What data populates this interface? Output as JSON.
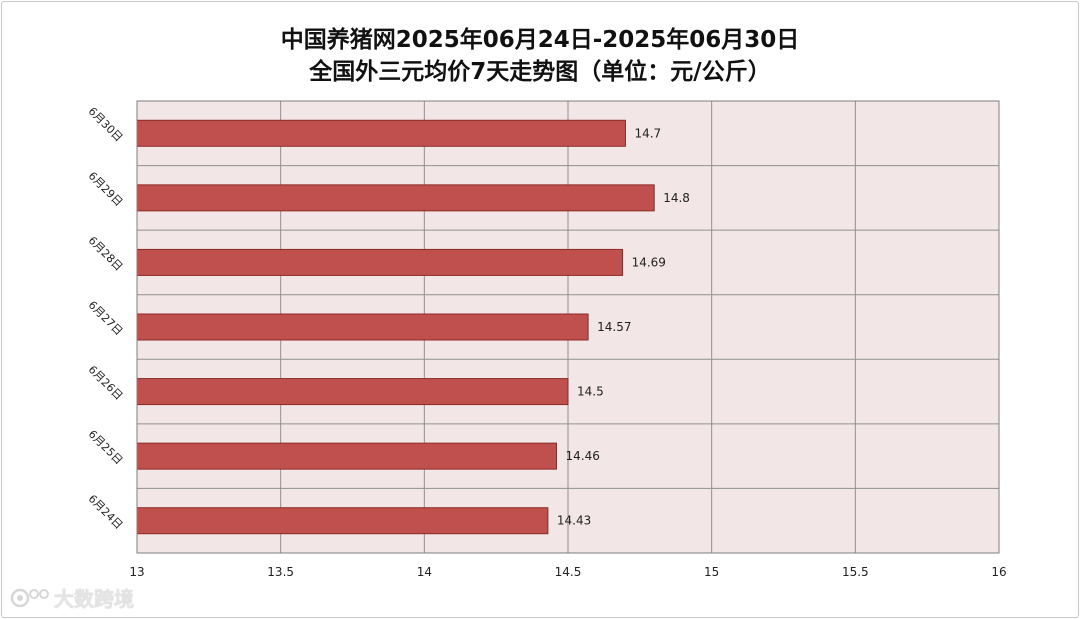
{
  "chart_data": {
    "type": "bar",
    "orientation": "horizontal",
    "title": "中国养猪网2025年06月24日-2025年06月30日",
    "subtitle": "全国外三元均价7天走势图（单位：元/公斤）",
    "categories": [
      "6月30日",
      "6月29日",
      "6月28日",
      "6月27日",
      "6月26日",
      "6月25日",
      "6月24日"
    ],
    "values": [
      14.7,
      14.8,
      14.69,
      14.57,
      14.5,
      14.46,
      14.43
    ],
    "data_labels": [
      "14.7",
      "14.8",
      "14.69",
      "14.57",
      "14.5",
      "14.46",
      "14.43"
    ],
    "xlim": [
      13,
      16
    ],
    "xticks": [
      "13",
      "13.5",
      "14",
      "14.5",
      "15",
      "15.5",
      "16"
    ],
    "grid": true,
    "legend": "none",
    "colors": {
      "bar": "#c0504d",
      "bar_edge": "#8c2a27",
      "plot_bg": "#f2e6e6",
      "grid": "#909090"
    }
  },
  "watermark": "大数跨境"
}
